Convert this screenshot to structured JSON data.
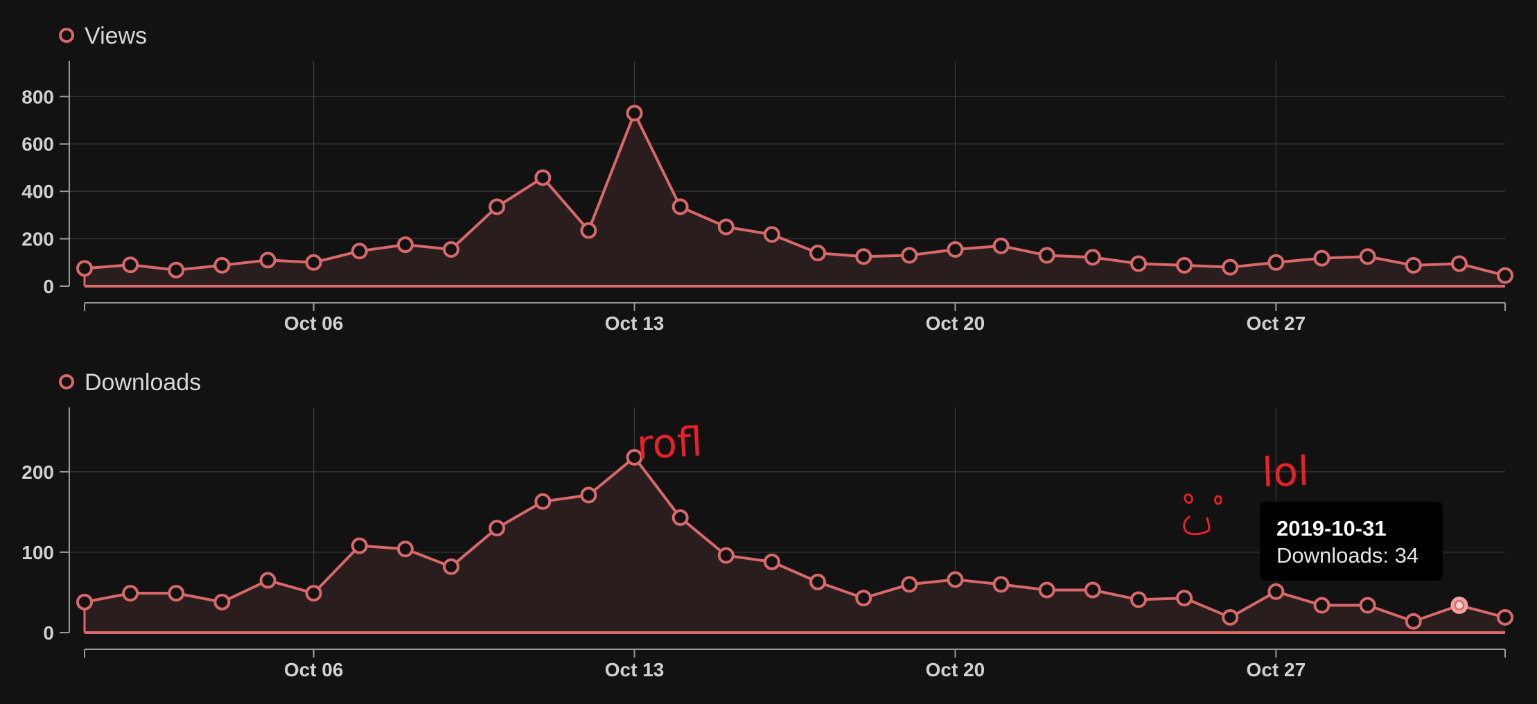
{
  "colors": {
    "background": "#121212",
    "series": "#d9686a",
    "area": "#2a1d1d",
    "grid": "#3a3a3a",
    "axis": "#9a9a9a",
    "tick_text": "#d0d0d0",
    "scribble": "#e8202a"
  },
  "chart_data": [
    {
      "type": "area",
      "name": "views",
      "legend": "Views",
      "x_start": "2019-10-01",
      "x_end": "2019-11-01",
      "x_ticks": [
        "Oct 06",
        "Oct 13",
        "Oct 20",
        "Oct 27"
      ],
      "y_ticks": [
        "0",
        "200",
        "400",
        "600",
        "800"
      ],
      "ylim": [
        0,
        950
      ],
      "grid": true,
      "values": [
        75,
        90,
        68,
        88,
        110,
        100,
        148,
        175,
        155,
        335,
        458,
        235,
        730,
        335,
        250,
        218,
        140,
        125,
        130,
        155,
        170,
        130,
        122,
        95,
        88,
        80,
        100,
        118,
        125,
        88,
        95,
        45
      ]
    },
    {
      "type": "area",
      "name": "downloads",
      "legend": "Downloads",
      "x_start": "2019-10-01",
      "x_end": "2019-11-01",
      "x_ticks": [
        "Oct 06",
        "Oct 13",
        "Oct 20",
        "Oct 27"
      ],
      "y_ticks": [
        "0",
        "100",
        "200"
      ],
      "ylim": [
        0,
        280
      ],
      "grid": true,
      "values": [
        38,
        49,
        49,
        38,
        65,
        49,
        108,
        104,
        82,
        130,
        163,
        171,
        218,
        143,
        96,
        88,
        63,
        43,
        60,
        66,
        60,
        53,
        53,
        41,
        43,
        19,
        51,
        34,
        34,
        14,
        34,
        19
      ],
      "highlight_index": 30,
      "tooltip": {
        "title": "2019-10-31",
        "body": "Downloads: 34"
      },
      "annotations": [
        "rofl",
        "lol"
      ]
    }
  ]
}
